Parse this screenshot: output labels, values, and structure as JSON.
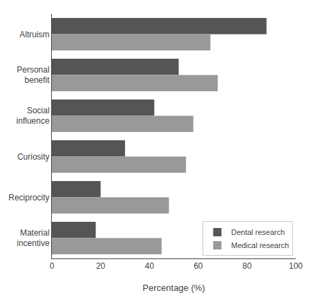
{
  "chart_data": {
    "type": "bar",
    "orientation": "horizontal",
    "categories": [
      "Altruism",
      "Personal\nbenefit",
      "Social\ninfluence",
      "Curiosity",
      "Reciprocity",
      "Material\nincentive"
    ],
    "series": [
      {
        "name": "Dental research",
        "color": "#555555",
        "values": [
          88,
          52,
          42,
          30,
          20,
          18
        ]
      },
      {
        "name": "Medical research",
        "color": "#999999",
        "values": [
          65,
          68,
          58,
          55,
          48,
          45
        ]
      }
    ],
    "x_label": "Percentage (%)",
    "xlim": [
      0,
      100
    ],
    "xticks": [
      0,
      20,
      40,
      60,
      80,
      100
    ],
    "grid": false,
    "legend": "lower right"
  }
}
